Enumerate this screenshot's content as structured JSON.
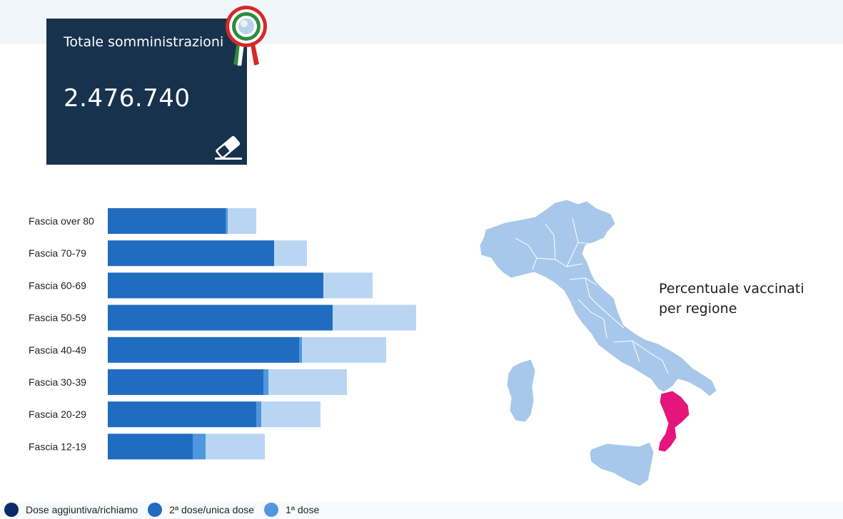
{
  "summary": {
    "title": "Totale somministrazioni",
    "total": "2.476.740",
    "icons": {
      "badge": "rosette-icon",
      "reset": "eraser-icon"
    }
  },
  "chart_data": {
    "type": "bar",
    "orientation": "horizontal",
    "stacked": true,
    "categories": [
      "Fascia over 80",
      "Fascia 70-79",
      "Fascia 60-69",
      "Fascia 50-59",
      "Fascia 40-49",
      "Fascia 30-39",
      "Fascia 20-29",
      "Fascia 12-19"
    ],
    "series": [
      {
        "name": "Dose aggiuntiva/richiamo",
        "color": "#0c2a6b",
        "values": [
          0,
          0,
          0,
          0,
          0,
          0,
          0,
          0
        ]
      },
      {
        "name": "2ª dose/unica dose",
        "color": "#1f6cc1",
        "values": [
          165,
          233,
          302,
          315,
          268,
          218,
          208,
          119
        ]
      },
      {
        "name": "1ª dose",
        "color": "#4f97de",
        "values": [
          3,
          0,
          0,
          0,
          4,
          7,
          7,
          18
        ]
      },
      {
        "name": "",
        "color": "#b8d6f2",
        "values": [
          40,
          46,
          69,
          117,
          118,
          110,
          83,
          83
        ]
      }
    ],
    "legend_position": "bottom-left",
    "grid": false
  },
  "map": {
    "title": "Percentuale vaccinati per regione",
    "base_color": "#a7c8ea",
    "highlight_color": "#e6157d",
    "highlighted_region": "Calabria"
  },
  "legend": {
    "items": [
      {
        "label": "Dose aggiuntiva/richiamo",
        "color": "#0c2a6b"
      },
      {
        "label": "2ª dose/unica dose",
        "color": "#1f6cc1"
      },
      {
        "label": "1ª dose",
        "color": "#4f97de"
      }
    ]
  }
}
